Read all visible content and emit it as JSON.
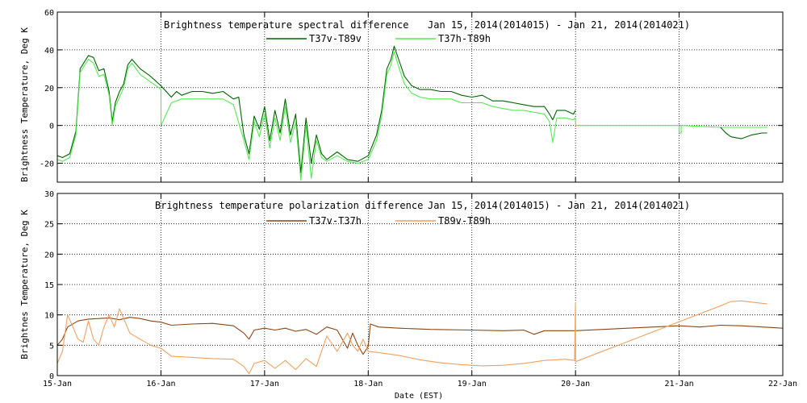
{
  "chart_data": [
    {
      "type": "line",
      "title_left": "Brightness temperature spectral difference",
      "title_right": "Jan 15, 2014(2014015) - Jan 21, 2014(2014021)",
      "ylabel": "Brightness Temperature, Deg K",
      "ylim": [
        -30,
        60
      ],
      "yticks": [
        "-20",
        "0",
        "20",
        "40",
        "60"
      ],
      "yticks_values": [
        -20,
        0,
        20,
        40,
        60
      ],
      "grid": true,
      "legend_placement": "top-center",
      "series": [
        {
          "name": "T37v-T89v",
          "color": "#006400",
          "points": [
            [
              0,
              -16
            ],
            [
              0.05,
              -17
            ],
            [
              0.12,
              -15
            ],
            [
              0.18,
              -3
            ],
            [
              0.22,
              30
            ],
            [
              0.3,
              37
            ],
            [
              0.35,
              36
            ],
            [
              0.4,
              29
            ],
            [
              0.45,
              30
            ],
            [
              0.5,
              18
            ],
            [
              0.53,
              2
            ],
            [
              0.56,
              12
            ],
            [
              0.6,
              18
            ],
            [
              0.64,
              22
            ],
            [
              0.68,
              32
            ],
            [
              0.72,
              35
            ],
            [
              0.8,
              30
            ],
            [
              0.9,
              26
            ],
            [
              0.98,
              22
            ],
            [
              1.0,
              21
            ],
            [
              1.1,
              15
            ],
            [
              1.15,
              18
            ],
            [
              1.2,
              16
            ],
            [
              1.3,
              18
            ],
            [
              1.4,
              18
            ],
            [
              1.5,
              17
            ],
            [
              1.6,
              18
            ],
            [
              1.7,
              14
            ],
            [
              1.75,
              15
            ],
            [
              1.8,
              -5
            ],
            [
              1.85,
              -15
            ],
            [
              1.9,
              5
            ],
            [
              1.95,
              -2
            ],
            [
              2.0,
              10
            ],
            [
              2.05,
              -8
            ],
            [
              2.1,
              8
            ],
            [
              2.15,
              -4
            ],
            [
              2.2,
              14
            ],
            [
              2.25,
              -5
            ],
            [
              2.3,
              6
            ],
            [
              2.35,
              -25
            ],
            [
              2.4,
              4
            ],
            [
              2.45,
              -20
            ],
            [
              2.5,
              -5
            ],
            [
              2.55,
              -15
            ],
            [
              2.6,
              -18
            ],
            [
              2.7,
              -14
            ],
            [
              2.8,
              -18
            ],
            [
              2.9,
              -19
            ],
            [
              3.0,
              -16
            ],
            [
              3.08,
              -5
            ],
            [
              3.13,
              8
            ],
            [
              3.18,
              30
            ],
            [
              3.22,
              35
            ],
            [
              3.25,
              42
            ],
            [
              3.3,
              34
            ],
            [
              3.35,
              26
            ],
            [
              3.42,
              21
            ],
            [
              3.5,
              19
            ],
            [
              3.6,
              19
            ],
            [
              3.7,
              18
            ],
            [
              3.8,
              18
            ],
            [
              3.9,
              16
            ],
            [
              4.0,
              15
            ],
            [
              4.1,
              16
            ],
            [
              4.2,
              13
            ],
            [
              4.3,
              13
            ],
            [
              4.4,
              12
            ],
            [
              4.5,
              11
            ],
            [
              4.6,
              10
            ],
            [
              4.7,
              10
            ],
            [
              4.75,
              6
            ],
            [
              4.78,
              3
            ],
            [
              4.82,
              8
            ],
            [
              4.9,
              8
            ],
            [
              4.98,
              6
            ],
            [
              5.0,
              8
            ]
          ]
        },
        {
          "name": "T37h-T89h",
          "color": "#55e855",
          "points": [
            [
              0,
              -18
            ],
            [
              0.05,
              -19
            ],
            [
              0.12,
              -17
            ],
            [
              0.18,
              -5
            ],
            [
              0.22,
              28
            ],
            [
              0.3,
              35
            ],
            [
              0.35,
              33
            ],
            [
              0.4,
              26
            ],
            [
              0.45,
              27
            ],
            [
              0.5,
              16
            ],
            [
              0.53,
              0
            ],
            [
              0.56,
              10
            ],
            [
              0.6,
              15
            ],
            [
              0.64,
              20
            ],
            [
              0.68,
              30
            ],
            [
              0.72,
              33
            ],
            [
              0.8,
              27
            ],
            [
              0.9,
              23
            ],
            [
              0.98,
              20
            ],
            [
              1.0,
              19
            ],
            [
              1.001,
              0
            ],
            [
              1.1,
              12
            ],
            [
              1.2,
              14
            ],
            [
              1.3,
              14
            ],
            [
              1.4,
              14
            ],
            [
              1.5,
              14
            ],
            [
              1.6,
              14
            ],
            [
              1.7,
              11
            ],
            [
              1.8,
              -8
            ],
            [
              1.85,
              -18
            ],
            [
              1.9,
              2
            ],
            [
              1.95,
              -6
            ],
            [
              2.0,
              6
            ],
            [
              2.05,
              -12
            ],
            [
              2.1,
              4
            ],
            [
              2.15,
              -8
            ],
            [
              2.2,
              10
            ],
            [
              2.25,
              -9
            ],
            [
              2.3,
              2
            ],
            [
              2.35,
              -29
            ],
            [
              2.4,
              0
            ],
            [
              2.45,
              -28
            ],
            [
              2.5,
              -8
            ],
            [
              2.55,
              -17
            ],
            [
              2.6,
              -19
            ],
            [
              2.7,
              -16
            ],
            [
              2.8,
              -19
            ],
            [
              2.9,
              -20
            ],
            [
              3.0,
              -18
            ],
            [
              3.08,
              -8
            ],
            [
              3.13,
              5
            ],
            [
              3.18,
              27
            ],
            [
              3.22,
              32
            ],
            [
              3.25,
              39
            ],
            [
              3.3,
              30
            ],
            [
              3.35,
              22
            ],
            [
              3.42,
              17
            ],
            [
              3.5,
              15
            ],
            [
              3.6,
              14
            ],
            [
              3.7,
              14
            ],
            [
              3.8,
              14
            ],
            [
              3.9,
              12
            ],
            [
              4.0,
              12
            ],
            [
              4.1,
              12
            ],
            [
              4.2,
              10
            ],
            [
              4.3,
              9
            ],
            [
              4.4,
              8
            ],
            [
              4.5,
              8
            ],
            [
              4.6,
              7
            ],
            [
              4.7,
              6
            ],
            [
              4.75,
              2
            ],
            [
              4.78,
              -9
            ],
            [
              4.82,
              4
            ],
            [
              4.9,
              4
            ],
            [
              4.98,
              3
            ],
            [
              5.0,
              4
            ],
            [
              5.001,
              0
            ],
            [
              6.0,
              0
            ],
            [
              6.001,
              -4
            ],
            [
              6.02,
              -4
            ],
            [
              6.02,
              0
            ],
            [
              6.4,
              -1
            ],
            [
              6.7,
              -1
            ],
            [
              6.85,
              -1
            ]
          ]
        },
        {
          "name": "T37v-T89v (tail)",
          "color": "#006400",
          "points": [
            [
              6.4,
              -1
            ],
            [
              6.45,
              -4
            ],
            [
              6.5,
              -6
            ],
            [
              6.6,
              -7
            ],
            [
              6.7,
              -5
            ],
            [
              6.8,
              -4
            ],
            [
              6.85,
              -4
            ]
          ]
        }
      ]
    },
    {
      "type": "line",
      "title_left": "Brightness temperature polarization difference",
      "title_right": "Jan 15, 2014(2014015) - Jan 21, 2014(2014021)",
      "ylabel": "Brightnes Temperature, Deg K",
      "xlabel": "Date (EST)",
      "ylim": [
        0,
        30
      ],
      "yticks": [
        "0",
        "5",
        "10",
        "15",
        "20",
        "25",
        "30"
      ],
      "yticks_values": [
        0,
        5,
        10,
        15,
        20,
        25,
        30
      ],
      "grid": true,
      "legend_placement": "top-center",
      "series": [
        {
          "name": "T37v-T37h",
          "color": "#8b4513",
          "points": [
            [
              0,
              5
            ],
            [
              0.05,
              6
            ],
            [
              0.1,
              8
            ],
            [
              0.2,
              9
            ],
            [
              0.3,
              9.3
            ],
            [
              0.4,
              9.4
            ],
            [
              0.5,
              9.5
            ],
            [
              0.6,
              9.2
            ],
            [
              0.7,
              9.6
            ],
            [
              0.8,
              9.4
            ],
            [
              0.9,
              9.0
            ],
            [
              1.0,
              8.8
            ],
            [
              1.1,
              8.3
            ],
            [
              1.3,
              8.5
            ],
            [
              1.5,
              8.6
            ],
            [
              1.7,
              8.2
            ],
            [
              1.8,
              7
            ],
            [
              1.85,
              6
            ],
            [
              1.9,
              7.5
            ],
            [
              2.0,
              7.8
            ],
            [
              2.1,
              7.5
            ],
            [
              2.2,
              7.8
            ],
            [
              2.3,
              7.3
            ],
            [
              2.4,
              7.6
            ],
            [
              2.5,
              6.8
            ],
            [
              2.6,
              8.0
            ],
            [
              2.7,
              7.5
            ],
            [
              2.8,
              4.5
            ],
            [
              2.85,
              7
            ],
            [
              2.9,
              5
            ],
            [
              2.95,
              3.5
            ],
            [
              3.0,
              4.8
            ],
            [
              3.02,
              8.5
            ],
            [
              3.1,
              8.0
            ],
            [
              3.3,
              7.8
            ],
            [
              3.6,
              7.6
            ],
            [
              4.0,
              7.5
            ],
            [
              4.3,
              7.4
            ],
            [
              4.5,
              7.5
            ],
            [
              4.6,
              6.8
            ],
            [
              4.7,
              7.4
            ],
            [
              5.0,
              7.4
            ],
            [
              6.0,
              8.2
            ],
            [
              6.2,
              8.0
            ],
            [
              6.4,
              8.3
            ],
            [
              6.6,
              8.2
            ],
            [
              6.8,
              8.0
            ],
            [
              7.0,
              7.8
            ]
          ]
        },
        {
          "name": "T89v-T89h",
          "color": "#f0a060",
          "points": [
            [
              0,
              2
            ],
            [
              0.05,
              4
            ],
            [
              0.1,
              10
            ],
            [
              0.15,
              8
            ],
            [
              0.2,
              6
            ],
            [
              0.25,
              5.5
            ],
            [
              0.3,
              9
            ],
            [
              0.35,
              6
            ],
            [
              0.4,
              5
            ],
            [
              0.45,
              8
            ],
            [
              0.5,
              10
            ],
            [
              0.55,
              8
            ],
            [
              0.6,
              11
            ],
            [
              0.65,
              9
            ],
            [
              0.7,
              7
            ],
            [
              0.8,
              6
            ],
            [
              0.9,
              5
            ],
            [
              1.0,
              4.5
            ],
            [
              1.1,
              3.2
            ],
            [
              1.3,
              3.0
            ],
            [
              1.5,
              2.8
            ],
            [
              1.7,
              2.7
            ],
            [
              1.8,
              1.5
            ],
            [
              1.85,
              0.3
            ],
            [
              1.9,
              2
            ],
            [
              2.0,
              2.5
            ],
            [
              2.1,
              1.2
            ],
            [
              2.2,
              2.5
            ],
            [
              2.3,
              1.0
            ],
            [
              2.4,
              2.8
            ],
            [
              2.5,
              1.5
            ],
            [
              2.6,
              6.5
            ],
            [
              2.7,
              4
            ],
            [
              2.8,
              7
            ],
            [
              2.85,
              5
            ],
            [
              2.9,
              4
            ],
            [
              2.95,
              6
            ],
            [
              3.0,
              4.0
            ],
            [
              3.1,
              3.8
            ],
            [
              3.3,
              3.3
            ],
            [
              3.5,
              2.6
            ],
            [
              3.7,
              2.1
            ],
            [
              3.9,
              1.8
            ],
            [
              4.1,
              1.6
            ],
            [
              4.3,
              1.7
            ],
            [
              4.5,
              2.0
            ],
            [
              4.7,
              2.5
            ],
            [
              4.9,
              2.7
            ],
            [
              4.99,
              2.5
            ],
            [
              5.0,
              12
            ],
            [
              5.001,
              2.3
            ],
            [
              6.4,
              11.5
            ],
            [
              6.5,
              12.2
            ],
            [
              6.6,
              12.3
            ],
            [
              6.7,
              12.1
            ],
            [
              6.85,
              11.8
            ]
          ]
        }
      ]
    }
  ],
  "xaxis": {
    "label": "Date (EST)",
    "ticks": [
      "15-Jan",
      "16-Jan",
      "17-Jan",
      "18-Jan",
      "19-Jan",
      "20-Jan",
      "21-Jan",
      "22-Jan"
    ],
    "xlim": [
      0,
      7
    ]
  }
}
